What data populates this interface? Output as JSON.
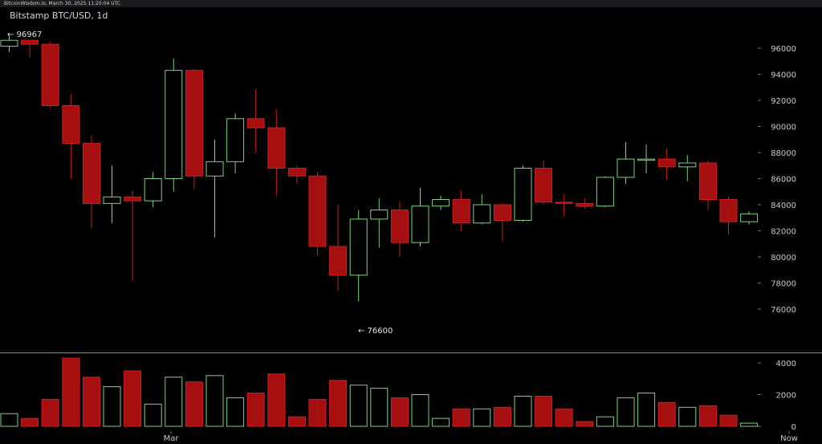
{
  "header": {
    "watermark": "BitcoinWisdom.io, March 30, 2025 11:20:04 UTC",
    "title": "Bitstamp BTC/USD, 1d"
  },
  "annotations": {
    "high_label": "← 96967",
    "low_label": "← 76600"
  },
  "colors": {
    "up": "#7fd07f",
    "down": "#a50f0f",
    "down_border": "#d11c1c",
    "axis_text": "#c8c8c8",
    "divider": "#8a8a8a"
  },
  "chart_data": {
    "type": "candlestick",
    "title": "Bitstamp BTC/USD, 1d",
    "price_axis": {
      "ticks": [
        "96000",
        "94000",
        "92000",
        "90000",
        "88000",
        "86000",
        "84000",
        "82000",
        "80000",
        "78000",
        "76000"
      ],
      "ylim": [
        75000,
        97500
      ]
    },
    "volume_axis": {
      "ticks": [
        "4000",
        "2000",
        "0"
      ],
      "ylim": [
        0,
        4500
      ]
    },
    "x_ticks": [
      "Mar",
      "Now"
    ],
    "candles": [
      {
        "o": 96150,
        "h": 96967,
        "l": 95700,
        "c": 96600,
        "v": 800
      },
      {
        "o": 96600,
        "h": 96650,
        "l": 95300,
        "c": 96300,
        "v": 500
      },
      {
        "o": 96300,
        "h": 96500,
        "l": 91400,
        "c": 91600,
        "v": 1700
      },
      {
        "o": 91600,
        "h": 92500,
        "l": 86000,
        "c": 88700,
        "v": 4300
      },
      {
        "o": 88700,
        "h": 89300,
        "l": 82200,
        "c": 84100,
        "v": 3100
      },
      {
        "o": 84100,
        "h": 87000,
        "l": 82600,
        "c": 84600,
        "v": 2500
      },
      {
        "o": 84600,
        "h": 85100,
        "l": 78200,
        "c": 84300,
        "v": 3500
      },
      {
        "o": 84300,
        "h": 86500,
        "l": 83800,
        "c": 86000,
        "v": 1400
      },
      {
        "o": 86000,
        "h": 95200,
        "l": 85000,
        "c": 94300,
        "v": 3100
      },
      {
        "o": 94300,
        "h": 94400,
        "l": 85200,
        "c": 86200,
        "v": 2800
      },
      {
        "o": 86200,
        "h": 89000,
        "l": 81500,
        "c": 87300,
        "v": 3200
      },
      {
        "o": 87300,
        "h": 91000,
        "l": 86400,
        "c": 90600,
        "v": 1800
      },
      {
        "o": 90600,
        "h": 92900,
        "l": 88000,
        "c": 89900,
        "v": 2100
      },
      {
        "o": 89900,
        "h": 91300,
        "l": 84700,
        "c": 86800,
        "v": 3300
      },
      {
        "o": 86800,
        "h": 87000,
        "l": 85600,
        "c": 86200,
        "v": 600
      },
      {
        "o": 86200,
        "h": 86500,
        "l": 80100,
        "c": 80800,
        "v": 1700
      },
      {
        "o": 80800,
        "h": 84000,
        "l": 77400,
        "c": 78600,
        "v": 2900
      },
      {
        "o": 78600,
        "h": 83600,
        "l": 76600,
        "c": 82900,
        "v": 2600
      },
      {
        "o": 82900,
        "h": 84500,
        "l": 80700,
        "c": 83600,
        "v": 2400
      },
      {
        "o": 83600,
        "h": 84300,
        "l": 80000,
        "c": 81100,
        "v": 1800
      },
      {
        "o": 81100,
        "h": 85300,
        "l": 80800,
        "c": 83900,
        "v": 2000
      },
      {
        "o": 83900,
        "h": 84700,
        "l": 83600,
        "c": 84400,
        "v": 500
      },
      {
        "o": 84400,
        "h": 85100,
        "l": 82000,
        "c": 82600,
        "v": 1100
      },
      {
        "o": 82600,
        "h": 84800,
        "l": 82500,
        "c": 84000,
        "v": 1100
      },
      {
        "o": 84000,
        "h": 84100,
        "l": 81200,
        "c": 82800,
        "v": 1200
      },
      {
        "o": 82800,
        "h": 87000,
        "l": 82700,
        "c": 86800,
        "v": 1900
      },
      {
        "o": 86800,
        "h": 87400,
        "l": 84000,
        "c": 84200,
        "v": 1900
      },
      {
        "o": 84200,
        "h": 84800,
        "l": 83100,
        "c": 84100,
        "v": 1100
      },
      {
        "o": 84100,
        "h": 84500,
        "l": 83700,
        "c": 83900,
        "v": 300
      },
      {
        "o": 83900,
        "h": 86200,
        "l": 83800,
        "c": 86100,
        "v": 600
      },
      {
        "o": 86100,
        "h": 88800,
        "l": 85600,
        "c": 87500,
        "v": 1800
      },
      {
        "o": 87500,
        "h": 88600,
        "l": 86400,
        "c": 87500,
        "v": 2100
      },
      {
        "o": 87500,
        "h": 88300,
        "l": 85900,
        "c": 86900,
        "v": 1500
      },
      {
        "o": 86900,
        "h": 87800,
        "l": 85800,
        "c": 87200,
        "v": 1200
      },
      {
        "o": 87200,
        "h": 87400,
        "l": 83600,
        "c": 84400,
        "v": 1300
      },
      {
        "o": 84400,
        "h": 84600,
        "l": 81700,
        "c": 82700,
        "v": 700
      },
      {
        "o": 82700,
        "h": 83500,
        "l": 82500,
        "c": 83300,
        "v": 200
      }
    ]
  }
}
